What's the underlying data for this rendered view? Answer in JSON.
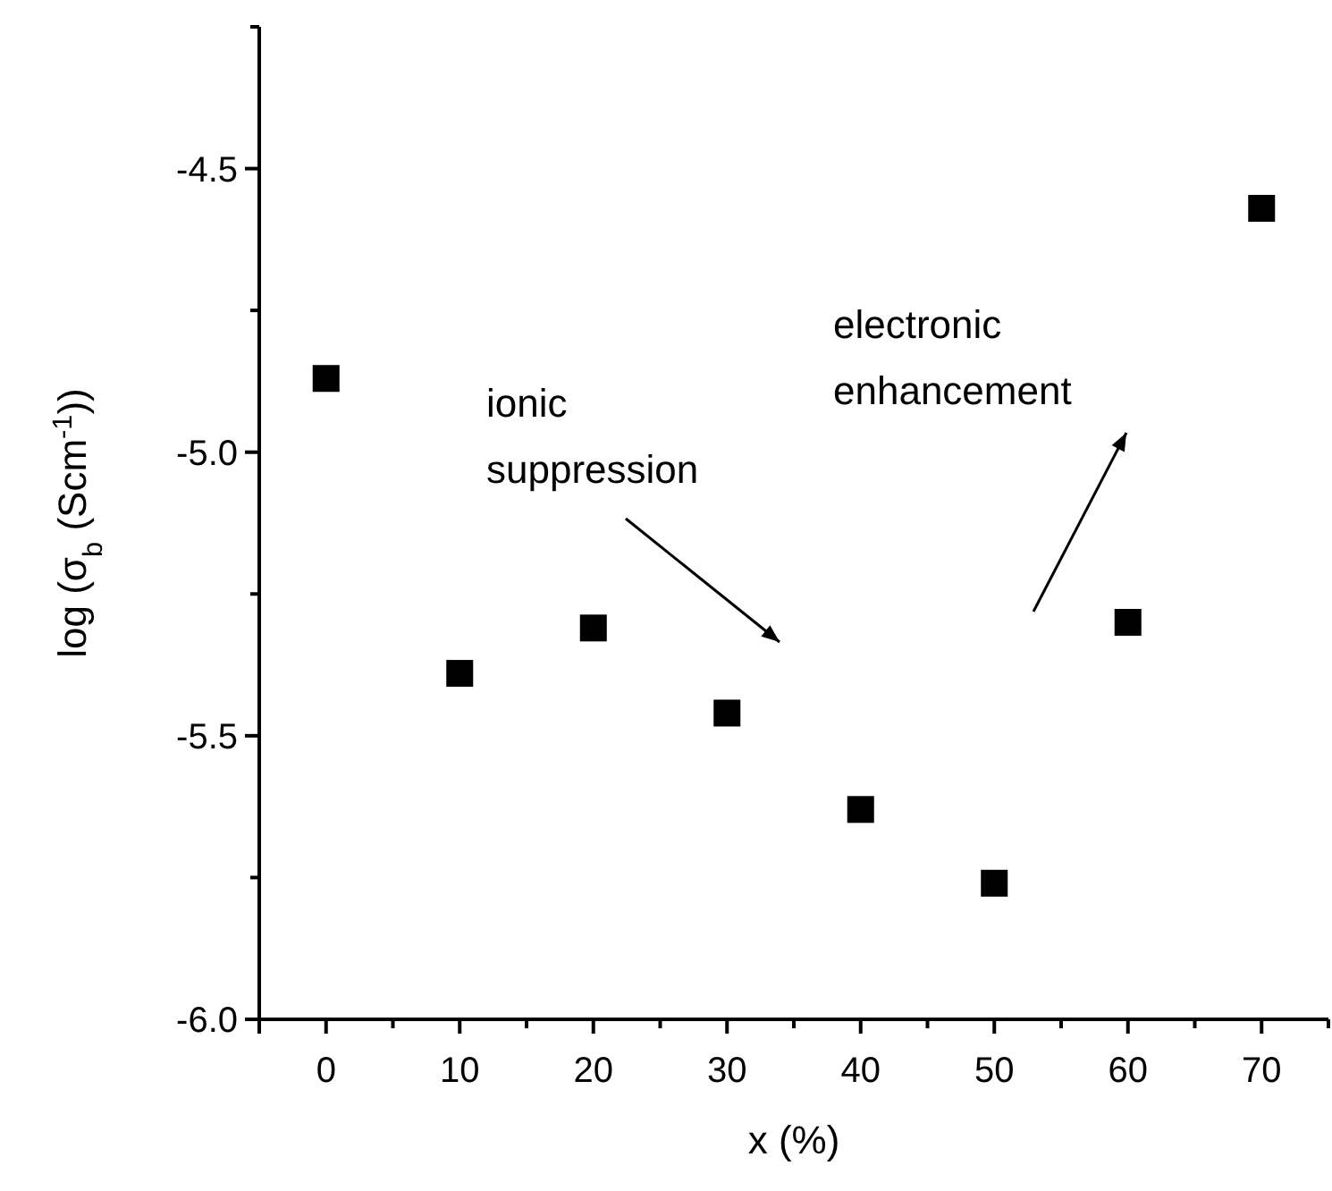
{
  "chart_data": {
    "type": "scatter",
    "xlabel": "x (%)",
    "ylabel": "log (σ$_{b}$ (Scm$^{-1}$))",
    "x": [
      0,
      10,
      20,
      30,
      40,
      50,
      60,
      70
    ],
    "series": [
      {
        "color": "#000000",
        "values": [
          -4.87,
          -5.39,
          -5.31,
          -5.46,
          -5.63,
          -5.76,
          -5.3,
          -4.57
        ]
      }
    ],
    "xlim": [
      -5,
      75
    ],
    "xticks": [
      0,
      10,
      20,
      30,
      40,
      50,
      60,
      70
    ],
    "ylim": [
      -6,
      -4.25
    ],
    "yticks": [
      {
        "value": -6,
        "label": "-6.0"
      },
      -5.5,
      {
        "value": -5,
        "label": "-5.0"
      },
      -4.5
    ],
    "marker": "square",
    "grid": false,
    "annotations": [
      "ionic\nsuppression",
      "electronic\nenhancement"
    ]
  }
}
